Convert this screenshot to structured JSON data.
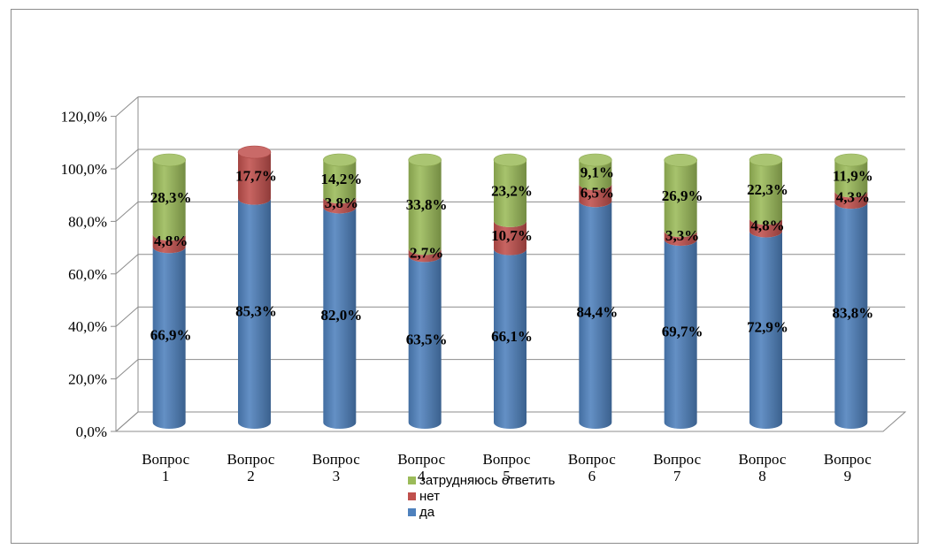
{
  "chart_data": {
    "type": "bar",
    "stacked": true,
    "style": "3d-cylinder",
    "categories": [
      [
        "Вопрос",
        "1"
      ],
      [
        "Вопрос",
        "2"
      ],
      [
        "Вопрос",
        "3"
      ],
      [
        "Вопрос",
        "4"
      ],
      [
        "Вопрос",
        "5"
      ],
      [
        "Вопрос",
        "6"
      ],
      [
        "Вопрос",
        "7"
      ],
      [
        "Вопрос",
        "8"
      ],
      [
        "Вопрос",
        "9"
      ]
    ],
    "series": [
      {
        "name": "да",
        "color": "#4F81BD",
        "values": [
          66.9,
          85.3,
          82.0,
          63.5,
          66.1,
          84.4,
          69.7,
          72.9,
          83.8
        ],
        "labels": [
          "66,9%",
          "85,3%",
          "82,0%",
          "63,5%",
          "66,1%",
          "84,4%",
          "69,7%",
          "72,9%",
          "83,8%"
        ]
      },
      {
        "name": "нет",
        "color": "#C0504D",
        "values": [
          4.8,
          17.7,
          3.8,
          2.7,
          10.7,
          6.5,
          3.3,
          4.8,
          4.3
        ],
        "labels": [
          "4,8%",
          "17,7%",
          "3,8%",
          "2,7%",
          "10,7%",
          "6,5%",
          "3,3%",
          "4,8%",
          "4,3%"
        ]
      },
      {
        "name": "затрудняюсь ответить",
        "color": "#9BBB59",
        "values": [
          28.3,
          0,
          14.2,
          33.8,
          23.2,
          9.1,
          26.9,
          22.3,
          11.9
        ],
        "labels": [
          "28,3%",
          "",
          "14,2%",
          "33,8%",
          "23,2%",
          "9,1%",
          "26,9%",
          "22,3%",
          "11,9%"
        ]
      }
    ],
    "y_ticks": [
      "0,0%",
      "20,0%",
      "40,0%",
      "60,0%",
      "80,0%",
      "100,0%",
      "120,0%"
    ],
    "ylim": [
      0,
      120
    ],
    "grid": true,
    "legend": {
      "position": "bottom",
      "order": [
        "затрудняюсь ответить",
        "нет",
        "да"
      ]
    }
  }
}
